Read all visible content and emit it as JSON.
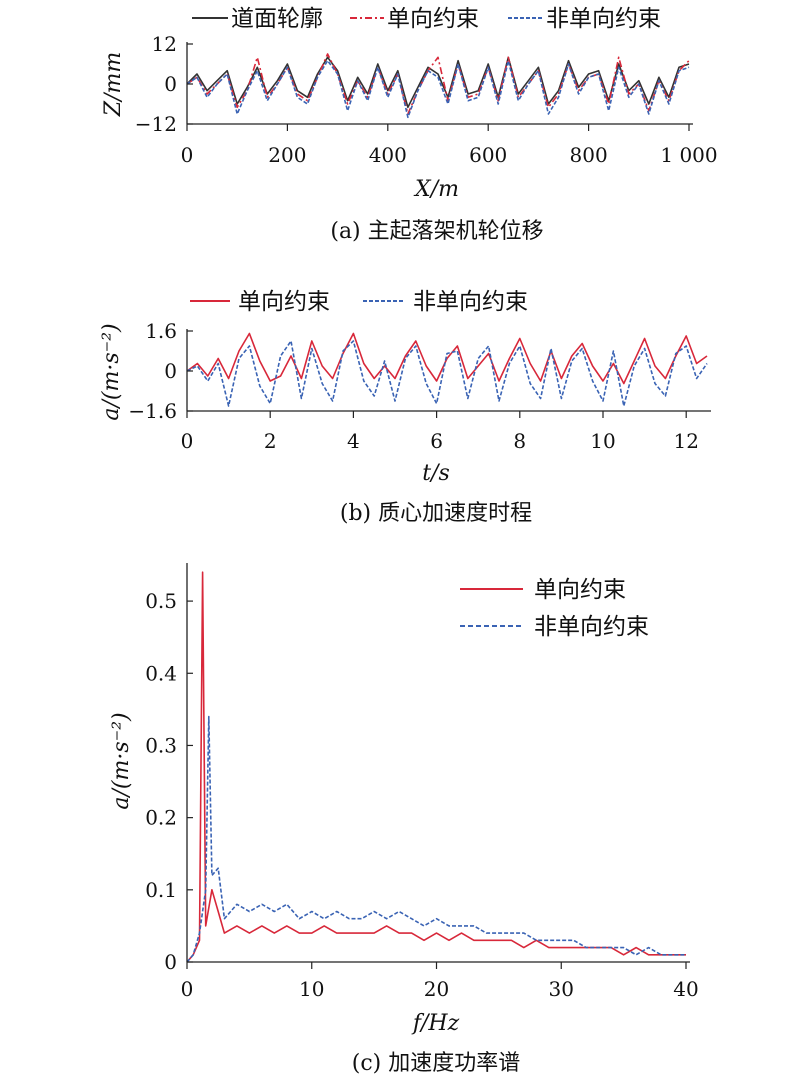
{
  "colors": {
    "profile": "#333333",
    "one_way": "#d8283a",
    "two_way": "#3a63b4",
    "axis": "#222222"
  },
  "chart_data": [
    {
      "type": "line",
      "caption": "(a) 主起落架机轮位移",
      "xlabel": "X/m",
      "ylabel": "Z/mm",
      "xlim": [
        0,
        1000
      ],
      "ylim": [
        -12,
        12
      ],
      "x_ticks": [
        "0",
        "200",
        "400",
        "600",
        "800",
        "1 000"
      ],
      "y_ticks": [
        "12",
        "0",
        "−12"
      ],
      "legend_position": "top",
      "series": [
        {
          "name": "道面轮廓",
          "style": "solid",
          "x": [
            0,
            20,
            40,
            60,
            80,
            100,
            120,
            140,
            160,
            180,
            200,
            220,
            240,
            260,
            280,
            300,
            320,
            340,
            360,
            380,
            400,
            420,
            440,
            460,
            480,
            500,
            520,
            540,
            560,
            580,
            600,
            620,
            640,
            660,
            680,
            700,
            720,
            740,
            760,
            780,
            800,
            820,
            840,
            860,
            880,
            900,
            920,
            940,
            960,
            980,
            1000
          ],
          "values": [
            0,
            3,
            -2,
            1,
            4,
            -6,
            -1,
            5,
            -3,
            1,
            6,
            -2,
            -4,
            3,
            8,
            4,
            -5,
            2,
            -3,
            6,
            -2,
            4,
            -7,
            -1,
            5,
            3,
            -4,
            7,
            -3,
            -2,
            6,
            -4,
            8,
            -3,
            1,
            5,
            -6,
            -2,
            7,
            -1,
            3,
            4,
            -5,
            6,
            -2,
            1,
            -6,
            2,
            -4,
            5,
            6
          ]
        },
        {
          "name": "单向约束",
          "style": "dashdot",
          "x": [
            0,
            20,
            40,
            60,
            80,
            100,
            120,
            140,
            160,
            180,
            200,
            220,
            240,
            260,
            280,
            300,
            320,
            340,
            360,
            380,
            400,
            420,
            440,
            460,
            480,
            500,
            520,
            540,
            560,
            580,
            600,
            620,
            640,
            660,
            680,
            700,
            720,
            740,
            760,
            780,
            800,
            820,
            840,
            860,
            880,
            900,
            920,
            940,
            960,
            980,
            1000
          ],
          "values": [
            0,
            2,
            -3,
            0,
            3,
            -7,
            -2,
            8,
            -4,
            0,
            5,
            -3,
            -5,
            2,
            9,
            3,
            -6,
            1,
            -4,
            5,
            -3,
            3,
            -9,
            -2,
            4,
            8,
            -5,
            6,
            -4,
            -3,
            5,
            -5,
            8,
            -4,
            0,
            4,
            -7,
            -3,
            6,
            -2,
            2,
            3,
            -6,
            8,
            -3,
            0,
            -8,
            1,
            -5,
            4,
            7
          ]
        },
        {
          "name": "非单向约束",
          "style": "dashed",
          "x": [
            0,
            20,
            40,
            60,
            80,
            100,
            120,
            140,
            160,
            180,
            200,
            220,
            240,
            260,
            280,
            300,
            320,
            340,
            360,
            380,
            400,
            420,
            440,
            460,
            480,
            500,
            520,
            540,
            560,
            580,
            600,
            620,
            640,
            660,
            680,
            700,
            720,
            740,
            760,
            780,
            800,
            820,
            840,
            860,
            880,
            900,
            920,
            940,
            960,
            980,
            1000
          ],
          "values": [
            0,
            2,
            -4,
            0,
            3,
            -9,
            -2,
            4,
            -5,
            0,
            5,
            -4,
            -6,
            2,
            7,
            3,
            -8,
            1,
            -5,
            5,
            -4,
            3,
            -10,
            -2,
            4,
            2,
            -6,
            6,
            -5,
            -4,
            5,
            -6,
            7,
            -5,
            0,
            4,
            -9,
            -4,
            6,
            -3,
            2,
            3,
            -8,
            5,
            -4,
            0,
            -9,
            1,
            -6,
            4,
            5
          ]
        }
      ]
    },
    {
      "type": "line",
      "caption": "(b) 质心加速度时程",
      "xlabel": "t/s",
      "ylabel": "a/(m·s⁻²)",
      "xlim": [
        0,
        12.5
      ],
      "ylim": [
        -1.6,
        1.6
      ],
      "x_ticks": [
        "0",
        "2",
        "4",
        "6",
        "8",
        "10",
        "12"
      ],
      "y_ticks": [
        "1.6",
        "0",
        "−1.6"
      ],
      "legend_position": "top",
      "series": [
        {
          "name": "单向约束",
          "style": "solid",
          "x": [
            0,
            0.25,
            0.5,
            0.75,
            1,
            1.25,
            1.5,
            1.75,
            2,
            2.25,
            2.5,
            2.75,
            3,
            3.25,
            3.5,
            3.75,
            4,
            4.25,
            4.5,
            4.75,
            5,
            5.25,
            5.5,
            5.75,
            6,
            6.25,
            6.5,
            6.75,
            7,
            7.25,
            7.5,
            7.75,
            8,
            8.25,
            8.5,
            8.75,
            9,
            9.25,
            9.5,
            9.75,
            10,
            10.25,
            10.5,
            10.75,
            11,
            11.25,
            11.5,
            11.75,
            12,
            12.25,
            12.5
          ],
          "values": [
            0,
            0.3,
            -0.2,
            0.5,
            -0.3,
            0.8,
            1.5,
            0.4,
            -0.4,
            -0.2,
            0.6,
            -0.3,
            1.2,
            0.2,
            -0.3,
            0.7,
            1.5,
            0.3,
            -0.3,
            0.2,
            -0.3,
            0.6,
            1.2,
            0.2,
            -0.4,
            0.5,
            1.0,
            -0.3,
            0.2,
            0.7,
            -0.4,
            0.5,
            1.3,
            0.3,
            -0.4,
            0.8,
            -0.3,
            0.6,
            1.1,
            0.2,
            -0.4,
            0.3,
            -0.5,
            0.4,
            1.3,
            0.2,
            -0.3,
            0.6,
            1.4,
            0.3,
            0.6
          ]
        },
        {
          "name": "非单向约束",
          "style": "dashed",
          "x": [
            0,
            0.25,
            0.5,
            0.75,
            1,
            1.25,
            1.5,
            1.75,
            2,
            2.25,
            2.5,
            2.75,
            3,
            3.25,
            3.5,
            3.75,
            4,
            4.25,
            4.5,
            4.75,
            5,
            5.25,
            5.5,
            5.75,
            6,
            6.25,
            6.5,
            6.75,
            7,
            7.25,
            7.5,
            7.75,
            8,
            8.25,
            8.5,
            8.75,
            9,
            9.25,
            9.5,
            9.75,
            10,
            10.25,
            10.5,
            10.75,
            11,
            11.25,
            11.5,
            11.75,
            12,
            12.25,
            12.5
          ],
          "values": [
            0,
            0.2,
            -0.4,
            0.3,
            -1.4,
            0.5,
            1.0,
            -0.6,
            -1.3,
            0.6,
            1.2,
            -1.1,
            0.9,
            -0.5,
            -1.2,
            0.8,
            1.2,
            -0.4,
            -1.0,
            0.4,
            -1.2,
            0.5,
            1.0,
            -0.5,
            -1.3,
            0.7,
            0.8,
            -1.1,
            0.5,
            1.0,
            -1.2,
            0.3,
            1.0,
            -0.5,
            -1.1,
            0.9,
            -1.1,
            0.4,
            0.9,
            -0.4,
            -1.2,
            0.8,
            -1.4,
            0.2,
            0.9,
            -0.5,
            -1.0,
            0.7,
            1.0,
            -0.3,
            0.3
          ]
        }
      ]
    },
    {
      "type": "line",
      "caption": "(c) 加速度功率谱",
      "xlabel": "f/Hz",
      "ylabel": "a/(m·s⁻²)",
      "xlim": [
        0,
        40
      ],
      "ylim": [
        0,
        0.55
      ],
      "x_ticks": [
        "0",
        "10",
        "20",
        "30",
        "40"
      ],
      "y_ticks": [
        "0",
        "0.1",
        "0.2",
        "0.3",
        "0.4",
        "0.5"
      ],
      "legend_position": "top-right",
      "series": [
        {
          "name": "单向约束",
          "style": "solid",
          "x": [
            0,
            0.5,
            1.0,
            1.25,
            1.5,
            2,
            2.5,
            3,
            4,
            5,
            6,
            7,
            8,
            9,
            10,
            11,
            12,
            13,
            14,
            15,
            16,
            17,
            18,
            19,
            20,
            21,
            22,
            23,
            24,
            25,
            26,
            27,
            28,
            29,
            30,
            31,
            32,
            33,
            34,
            35,
            36,
            37,
            38,
            39,
            40
          ],
          "values": [
            0,
            0.01,
            0.03,
            0.54,
            0.05,
            0.1,
            0.07,
            0.04,
            0.05,
            0.04,
            0.05,
            0.04,
            0.05,
            0.04,
            0.04,
            0.05,
            0.04,
            0.04,
            0.04,
            0.04,
            0.05,
            0.04,
            0.04,
            0.03,
            0.04,
            0.03,
            0.04,
            0.03,
            0.03,
            0.03,
            0.03,
            0.02,
            0.03,
            0.02,
            0.02,
            0.02,
            0.02,
            0.02,
            0.02,
            0.01,
            0.02,
            0.01,
            0.01,
            0.01,
            0.01
          ]
        },
        {
          "name": "非单向约束",
          "style": "dashed",
          "x": [
            0,
            0.5,
            1.0,
            1.5,
            1.75,
            2,
            2.5,
            3,
            4,
            5,
            6,
            7,
            8,
            9,
            10,
            11,
            12,
            13,
            14,
            15,
            16,
            17,
            18,
            19,
            20,
            21,
            22,
            23,
            24,
            25,
            26,
            27,
            28,
            29,
            30,
            31,
            32,
            33,
            34,
            35,
            36,
            37,
            38,
            39,
            40
          ],
          "values": [
            0,
            0.01,
            0.04,
            0.1,
            0.34,
            0.12,
            0.13,
            0.06,
            0.08,
            0.07,
            0.08,
            0.07,
            0.08,
            0.06,
            0.07,
            0.06,
            0.07,
            0.06,
            0.06,
            0.07,
            0.06,
            0.07,
            0.06,
            0.05,
            0.06,
            0.05,
            0.05,
            0.05,
            0.04,
            0.04,
            0.04,
            0.04,
            0.03,
            0.03,
            0.03,
            0.03,
            0.02,
            0.02,
            0.02,
            0.02,
            0.01,
            0.02,
            0.01,
            0.01,
            0.01
          ]
        }
      ]
    }
  ]
}
